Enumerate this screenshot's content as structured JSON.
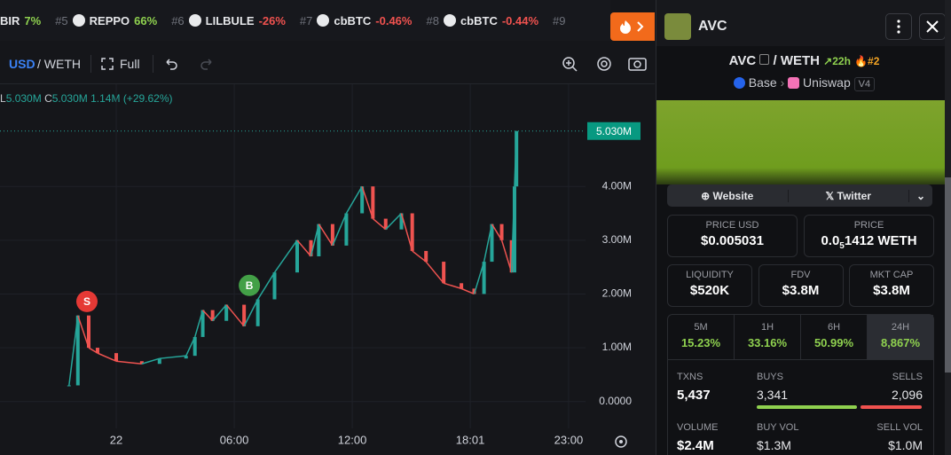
{
  "ticker": {
    "items": [
      {
        "symbol": "BIR",
        "change": "7%"
      },
      {
        "rank": "#5",
        "symbol": "REPPO",
        "change": "66%"
      },
      {
        "rank": "#6",
        "symbol": "LILBULE",
        "change": "-26%"
      },
      {
        "rank": "#7",
        "symbol": "cbBTC",
        "change": "-0.46%"
      },
      {
        "rank": "#8",
        "symbol": "cbBTC",
        "change": "-0.44%"
      },
      {
        "rank": "#9"
      }
    ]
  },
  "toolbar": {
    "currency": "USD",
    "pair": "/ WETH",
    "full": "Full"
  },
  "legend": {
    "low": "L",
    "low_value": "5.030M",
    "close": "C",
    "close_value": "5.030M",
    "volume": "1.14M",
    "change": "(+29.62%)"
  },
  "chart": {
    "type": "candlestick",
    "x": [
      -2.4,
      -1.95,
      -1.4,
      -0.95,
      0,
      1.3,
      2.2,
      3.55,
      4.0,
      4.4,
      4.9,
      5.6,
      6.5,
      7.2,
      8.05,
      9.2,
      9.9,
      10.3,
      11.0,
      11.7,
      12.5,
      13.05,
      13.7,
      14.5,
      15.05,
      15.75,
      16.65,
      17.55,
      18.2,
      18.7,
      19.1,
      19.6,
      20.1,
      20.25,
      20.35
    ],
    "values": [
      300000,
      1600000,
      1000000,
      900000,
      750000,
      700000,
      800000,
      850000,
      1200000,
      1700000,
      1500000,
      1800000,
      1400000,
      1900000,
      2400000,
      3000000,
      2700000,
      3300000,
      2900000,
      3500000,
      4000000,
      3400000,
      3200000,
      3500000,
      2800000,
      2600000,
      2200000,
      2100000,
      2000000,
      2600000,
      3300000,
      3000000,
      2400000,
      4000000,
      5030000
    ],
    "up_color": "#26a69a",
    "down_color": "#ef5350",
    "xlim": [
      -5.91,
      23.86
    ],
    "ylim": [
      -500000,
      5900000
    ],
    "xticks": [
      {
        "value": 0,
        "label": "22"
      },
      {
        "value": 6,
        "label": "06:00"
      },
      {
        "value": 12,
        "label": "12:00"
      },
      {
        "value": 18,
        "label": "18:01"
      },
      {
        "value": 23,
        "label": "23:00"
      }
    ],
    "yticks": [
      {
        "value": 0,
        "label": "0.0000"
      },
      {
        "value": 1000000,
        "label": "1.00M"
      },
      {
        "value": 2000000,
        "label": "2.00M"
      },
      {
        "value": 3000000,
        "label": "3.00M"
      },
      {
        "value": 4000000,
        "label": "4.00M"
      }
    ],
    "grid": true,
    "last_price": {
      "value": 5030000,
      "label": "5.030M"
    },
    "annotations": [
      {
        "text": "S",
        "x": -1.49,
        "y": 1860000,
        "color": "#e53935"
      },
      {
        "text": "B",
        "x": 6.77,
        "y": 2160000,
        "color": "#43a047"
      }
    ]
  },
  "token": {
    "symbol": "AVC"
  },
  "pair": {
    "base": "AVC",
    "quote": "/ WETH",
    "age": "22h",
    "rank": "#2",
    "chain": "Base",
    "dex": "Uniswap",
    "version": "V4"
  },
  "links": {
    "website": "Website",
    "twitter": "Twitter"
  },
  "price": {
    "usd_label": "PRICE USD",
    "usd": "$0.005031",
    "native_label": "PRICE",
    "native_lead": "0.0",
    "native_zeros": "5",
    "native_rest": "1412 WETH"
  },
  "stats": [
    {
      "label": "LIQUIDITY",
      "value": "$520K"
    },
    {
      "label": "FDV",
      "value": "$3.8M"
    },
    {
      "label": "MKT CAP",
      "value": "$3.8M"
    }
  ],
  "changes": {
    "selected": 3,
    "periods": [
      {
        "period": "5M",
        "value": "15.23%"
      },
      {
        "period": "1H",
        "value": "33.16%"
      },
      {
        "period": "6H",
        "value": "50.99%"
      },
      {
        "period": "24H",
        "value": "8,867%"
      }
    ]
  },
  "txns": {
    "txns_label": "TXNS",
    "txns": "5,437",
    "buys_label": "BUYS",
    "buys": "3,341",
    "sells_label": "SELLS",
    "sells": "2,096",
    "volume_label": "VOLUME",
    "volume": "$2.4M",
    "buy_vol_label": "BUY VOL",
    "buy_vol": "$1.3M",
    "sell_vol_label": "SELL VOL",
    "sell_vol": "$1.0M"
  }
}
